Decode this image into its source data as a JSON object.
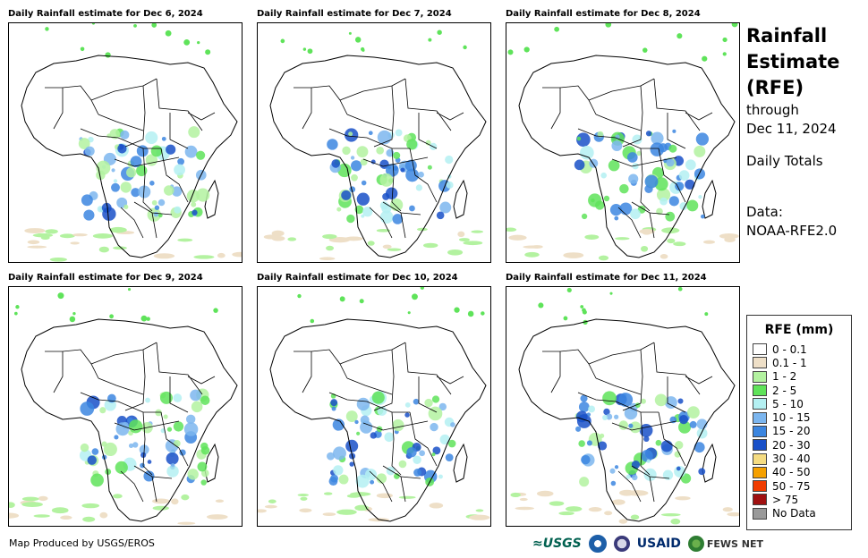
{
  "panels": [
    {
      "title": "Daily Rainfall estimate for Dec 6, 2024"
    },
    {
      "title": "Daily Rainfall estimate for Dec 7, 2024"
    },
    {
      "title": "Daily Rainfall estimate for Dec 8, 2024"
    },
    {
      "title": "Daily Rainfall estimate for Dec 9, 2024"
    },
    {
      "title": "Daily Rainfall estimate for Dec 10, 2024"
    },
    {
      "title": "Daily Rainfall estimate for Dec 11, 2024"
    }
  ],
  "sidebar": {
    "title_line1": "Rainfall",
    "title_line2": "Estimate",
    "title_line3": "(RFE)",
    "through": "through",
    "date": "Dec 11, 2024",
    "totals": "Daily Totals",
    "data_label": "Data:",
    "data_source": "NOAA-RFE2.0"
  },
  "legend": {
    "title": "RFE (mm)",
    "items": [
      {
        "label": "0 - 0.1",
        "color": "#ffffff"
      },
      {
        "label": "0.1 - 1",
        "color": "#eedfc7"
      },
      {
        "label": "1 - 2",
        "color": "#b3f2a0"
      },
      {
        "label": "2 - 5",
        "color": "#5fe35a"
      },
      {
        "label": "5 - 10",
        "color": "#b4f0f2"
      },
      {
        "label": "10 - 15",
        "color": "#7cb6ef"
      },
      {
        "label": "15 - 20",
        "color": "#3c86e0"
      },
      {
        "label": "20 - 30",
        "color": "#1950c8"
      },
      {
        "label": "30 - 40",
        "color": "#f5dc82"
      },
      {
        "label": "40 - 50",
        "color": "#f5a000"
      },
      {
        "label": "50 - 75",
        "color": "#f03c00"
      },
      {
        "label": "> 75",
        "color": "#a01010"
      },
      {
        "label": "No Data",
        "color": "#999999"
      }
    ]
  },
  "footer": {
    "credit": "Map Produced by USGS/EROS",
    "logo_usgs": "≈USGS",
    "logo_usaid": "USAID",
    "logo_fews": "FEWS NET"
  }
}
